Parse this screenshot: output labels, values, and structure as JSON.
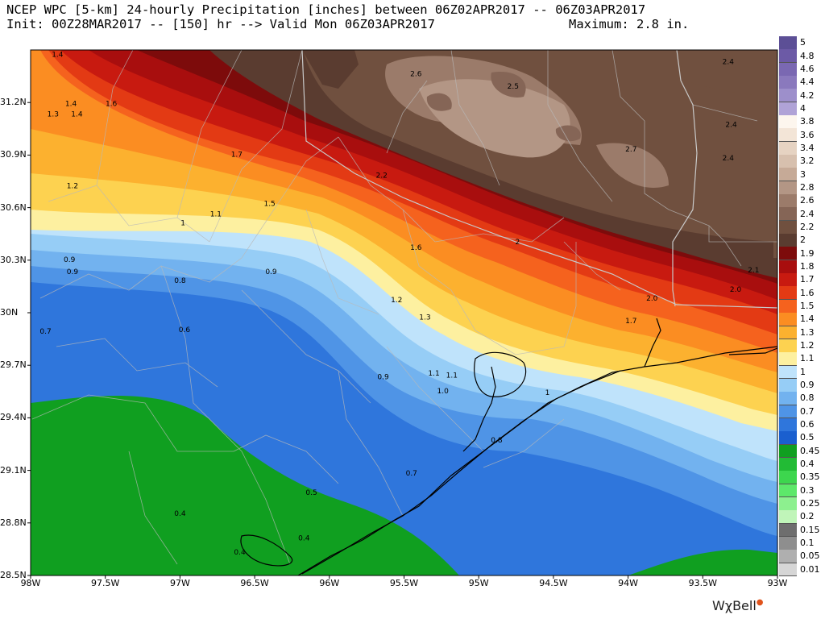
{
  "header": {
    "line1": "NCEP WPC [5-km] 24-hourly Precipitation [inches] between 06Z02APR2017 -- 06Z03APR2017",
    "line2": "Init: 00Z28MAR2017 -- [150] hr --> Valid Mon 06Z03APR2017",
    "maximum": "Maximum: 2.8 in."
  },
  "map": {
    "lon_range": [
      -98,
      -93
    ],
    "lat_range": [
      28.5,
      31.5
    ],
    "x_ticks": [
      "98W",
      "97.5W",
      "97W",
      "96.5W",
      "96W",
      "95.5W",
      "95W",
      "94.5W",
      "94W",
      "93.5W",
      "93W"
    ],
    "y_ticks": [
      "31.2N",
      "30.9N",
      "30.6N",
      "30.3N",
      "30N",
      "29.7N",
      "29.4N",
      "29.1N",
      "28.8N",
      "28.5N"
    ],
    "contour_labels": [
      {
        "text": "1.4",
        "lon": -97.82,
        "lat": 31.46
      },
      {
        "text": "1.7",
        "lon": -97.35,
        "lat": 31.52
      },
      {
        "text": "1.4",
        "lon": -97.73,
        "lat": 31.18
      },
      {
        "text": "1.3",
        "lon": -97.85,
        "lat": 31.12
      },
      {
        "text": "1.4",
        "lon": -97.69,
        "lat": 31.12
      },
      {
        "text": "1.6",
        "lon": -97.46,
        "lat": 31.18
      },
      {
        "text": "1.7",
        "lon": -96.62,
        "lat": 30.89
      },
      {
        "text": "1.2",
        "lon": -97.72,
        "lat": 30.71
      },
      {
        "text": "1.1",
        "lon": -96.76,
        "lat": 30.55
      },
      {
        "text": "1.5",
        "lon": -96.4,
        "lat": 30.61
      },
      {
        "text": "1",
        "lon": -96.98,
        "lat": 30.5
      },
      {
        "text": "0.9",
        "lon": -97.74,
        "lat": 30.29
      },
      {
        "text": "0.9",
        "lon": -97.72,
        "lat": 30.22
      },
      {
        "text": "0.8",
        "lon": -97.0,
        "lat": 30.17
      },
      {
        "text": "0.9",
        "lon": -96.39,
        "lat": 30.22
      },
      {
        "text": "0.7",
        "lon": -97.9,
        "lat": 29.88
      },
      {
        "text": "0.6",
        "lon": -96.97,
        "lat": 29.89
      },
      {
        "text": "1.6",
        "lon": -95.42,
        "lat": 30.36
      },
      {
        "text": "2",
        "lon": -94.74,
        "lat": 30.39
      },
      {
        "text": "1.2",
        "lon": -95.55,
        "lat": 30.06
      },
      {
        "text": "1.3",
        "lon": -95.36,
        "lat": 29.96
      },
      {
        "text": "0.9",
        "lon": -95.64,
        "lat": 29.62
      },
      {
        "text": "1.1",
        "lon": -95.3,
        "lat": 29.64
      },
      {
        "text": "1.1",
        "lon": -95.18,
        "lat": 29.63
      },
      {
        "text": "1.0",
        "lon": -95.24,
        "lat": 29.54
      },
      {
        "text": "1",
        "lon": -94.54,
        "lat": 29.53
      },
      {
        "text": "0.8",
        "lon": -94.88,
        "lat": 29.26
      },
      {
        "text": "0.7",
        "lon": -95.45,
        "lat": 29.07
      },
      {
        "text": "0.5",
        "lon": -96.12,
        "lat": 28.96
      },
      {
        "text": "0.4",
        "lon": -97.0,
        "lat": 28.84
      },
      {
        "text": "0.4",
        "lon": -96.17,
        "lat": 28.7
      },
      {
        "text": "0.4",
        "lon": -96.6,
        "lat": 28.62
      },
      {
        "text": "2.2",
        "lon": -95.65,
        "lat": 30.77
      },
      {
        "text": "2.6",
        "lon": -95.42,
        "lat": 31.35
      },
      {
        "text": "2.5",
        "lon": -94.77,
        "lat": 31.28
      },
      {
        "text": "2.7",
        "lon": -93.98,
        "lat": 30.92
      },
      {
        "text": "2.4",
        "lon": -93.33,
        "lat": 31.42
      },
      {
        "text": "2.4",
        "lon": -93.31,
        "lat": 31.06
      },
      {
        "text": "2.4",
        "lon": -93.33,
        "lat": 30.87
      },
      {
        "text": "2.1",
        "lon": -93.16,
        "lat": 30.23
      },
      {
        "text": "2.0",
        "lon": -93.28,
        "lat": 30.12
      },
      {
        "text": "2.0",
        "lon": -93.84,
        "lat": 30.07
      },
      {
        "text": "1.7",
        "lon": -93.98,
        "lat": 29.94
      }
    ]
  },
  "legend": {
    "entries": [
      {
        "label": "5",
        "color": "#5c4f96"
      },
      {
        "label": "4.8",
        "color": "#6c5aa6"
      },
      {
        "label": "4.6",
        "color": "#7a68b2"
      },
      {
        "label": "4.4",
        "color": "#8a79bd"
      },
      {
        "label": "4.2",
        "color": "#9d8fcb"
      },
      {
        "label": "4",
        "color": "#b0a3d7"
      },
      {
        "label": "3.8",
        "color": "#fdf6ee"
      },
      {
        "label": "3.6",
        "color": "#f3e5d7"
      },
      {
        "label": "3.4",
        "color": "#e6d3c2"
      },
      {
        "label": "3.2",
        "color": "#d7c0ae"
      },
      {
        "label": "3",
        "color": "#c6aa97"
      },
      {
        "label": "2.8",
        "color": "#b39685"
      },
      {
        "label": "2.6",
        "color": "#9b7b6a"
      },
      {
        "label": "2.4",
        "color": "#856556"
      },
      {
        "label": "2.2",
        "color": "#70503f"
      },
      {
        "label": "2",
        "color": "#5a3c30"
      },
      {
        "label": "1.9",
        "color": "#7d0b0b"
      },
      {
        "label": "1.8",
        "color": "#a80e0e"
      },
      {
        "label": "1.7",
        "color": "#c81a10"
      },
      {
        "label": "1.6",
        "color": "#e33a14"
      },
      {
        "label": "1.5",
        "color": "#f5621e"
      },
      {
        "label": "1.4",
        "color": "#fb8d22"
      },
      {
        "label": "1.3",
        "color": "#fcb12f"
      },
      {
        "label": "1.2",
        "color": "#fdd250"
      },
      {
        "label": "1.1",
        "color": "#fdf0a0"
      },
      {
        "label": "1",
        "color": "#bfe3fb"
      },
      {
        "label": "0.9",
        "color": "#96cdf6"
      },
      {
        "label": "0.8",
        "color": "#72b2ef"
      },
      {
        "label": "0.7",
        "color": "#4f94e6"
      },
      {
        "label": "0.6",
        "color": "#2f76dc"
      },
      {
        "label": "0.5",
        "color": "#1a5fcf"
      },
      {
        "label": "0.45",
        "color": "#109f20"
      },
      {
        "label": "0.4",
        "color": "#22bb35"
      },
      {
        "label": "0.35",
        "color": "#3dd64e"
      },
      {
        "label": "0.3",
        "color": "#5de86a"
      },
      {
        "label": "0.25",
        "color": "#8df08f"
      },
      {
        "label": "0.2",
        "color": "#c0f5b9"
      },
      {
        "label": "0.15",
        "color": "#6e6e6e"
      },
      {
        "label": "0.1",
        "color": "#8e8e8e"
      },
      {
        "label": "0.05",
        "color": "#afafaf"
      },
      {
        "label": "0.01",
        "color": "#d6d6d6"
      }
    ]
  },
  "brand": {
    "name": "WχBell"
  }
}
